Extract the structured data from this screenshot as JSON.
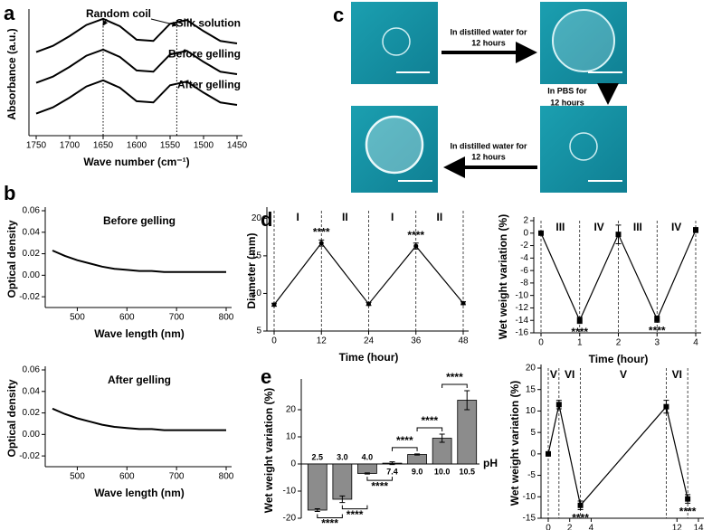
{
  "chart_data": [
    {
      "panel": "a",
      "type": "line",
      "x_label": "Wave number (cm⁻¹)",
      "y_label": "Absorbance (a.u.)",
      "xlim": [
        1750,
        1450
      ],
      "xticks": [
        1750,
        1700,
        1650,
        1600,
        1550,
        1500,
        1450
      ],
      "ylim": [
        0,
        10
      ],
      "x": [
        1750,
        1725,
        1700,
        1675,
        1650,
        1625,
        1600,
        1575,
        1550,
        1525,
        1500,
        1475,
        1450
      ],
      "series": [
        {
          "name": "Silk solution",
          "color": "#000000",
          "values": [
            6.8,
            7.3,
            8.1,
            9.0,
            9.5,
            8.9,
            7.8,
            7.7,
            9.1,
            9.4,
            8.5,
            7.7,
            7.5
          ]
        },
        {
          "name": "Before gelling",
          "color": "#000000",
          "values": [
            4.3,
            4.8,
            5.6,
            6.5,
            7.0,
            6.4,
            5.3,
            5.2,
            6.6,
            6.9,
            6.0,
            5.2,
            5.0
          ]
        },
        {
          "name": "After gelling",
          "color": "#000000",
          "values": [
            1.8,
            2.3,
            3.1,
            4.0,
            4.5,
            3.9,
            2.8,
            2.7,
            4.1,
            4.4,
            3.5,
            2.7,
            2.5
          ]
        }
      ],
      "reference_lines": [
        1650,
        1540
      ],
      "annotation": "Random coil"
    },
    {
      "panel": "b",
      "type": "line",
      "title": "Before gelling",
      "x_label": "Wave length (nm)",
      "y_label": "Optical density",
      "xlim": [
        450,
        800
      ],
      "xticks": [
        500,
        600,
        700,
        800
      ],
      "ylim": [
        -0.03,
        0.06
      ],
      "yticks": [
        {
          "value": -0.02,
          "label": "-0.02"
        },
        {
          "value": 0,
          "label": "0.00"
        },
        {
          "value": 0.02,
          "label": "0.02"
        },
        {
          "value": 0.04,
          "label": "0.04"
        },
        {
          "value": 0.06,
          "label": "0.06"
        }
      ],
      "x": [
        450,
        475,
        500,
        525,
        550,
        575,
        600,
        625,
        650,
        675,
        700,
        725,
        750,
        775,
        800
      ],
      "series": [
        {
          "color": "#000000",
          "values": [
            0.023,
            0.018,
            0.014,
            0.011,
            0.008,
            0.006,
            0.005,
            0.004,
            0.004,
            0.003,
            0.003,
            0.003,
            0.003,
            0.003,
            0.003
          ]
        }
      ]
    },
    {
      "type": "line",
      "title": "After gelling",
      "x_label": "Wave length (nm)",
      "y_label": "Optical density",
      "xlim": [
        450,
        800
      ],
      "xticks": [
        500,
        600,
        700,
        800
      ],
      "ylim": [
        -0.03,
        0.06
      ],
      "yticks": [
        {
          "value": -0.02,
          "label": "-0.02"
        },
        {
          "value": 0,
          "label": "0.00"
        },
        {
          "value": 0.02,
          "label": "0.02"
        },
        {
          "value": 0.04,
          "label": "0.04"
        },
        {
          "value": 0.06,
          "label": "0.06"
        }
      ],
      "x": [
        450,
        475,
        500,
        525,
        550,
        575,
        600,
        625,
        650,
        675,
        700,
        725,
        750,
        775,
        800
      ],
      "series": [
        {
          "color": "#000000",
          "values": [
            0.024,
            0.019,
            0.015,
            0.012,
            0.009,
            0.007,
            0.006,
            0.005,
            0.005,
            0.004,
            0.004,
            0.004,
            0.004,
            0.004,
            0.004
          ]
        }
      ]
    },
    {
      "panel": "d",
      "type": "line",
      "x_label": "Time (hour)",
      "y_label": "Diameter (mm)",
      "marker": "circle",
      "xlim": [
        0,
        48
      ],
      "xticks": [
        0,
        12,
        24,
        36,
        48
      ],
      "ylim": [
        5,
        21
      ],
      "yticks": [
        5,
        10,
        15,
        20
      ],
      "x": [
        0,
        12,
        24,
        36,
        48
      ],
      "series": [
        {
          "color": "#000000",
          "values": [
            8.5,
            16.7,
            8.6,
            16.3,
            8.7
          ],
          "errors": [
            0.2,
            0.4,
            0.2,
            0.4,
            0.2
          ]
        }
      ],
      "boundaries": [
        0,
        12,
        24,
        36,
        48
      ],
      "regions": [
        "I",
        "II",
        "I",
        "II"
      ],
      "annotations": [
        {
          "x": 12,
          "text": "****"
        },
        {
          "x": 36,
          "text": "****"
        }
      ]
    },
    {
      "type": "line",
      "x_label": "Time (hour)",
      "y_label": "Wet weight variation (%)",
      "marker": "square",
      "xlim": [
        0,
        4
      ],
      "xticks": [
        0,
        1,
        2,
        3,
        4
      ],
      "ylim": [
        -16,
        2
      ],
      "yticks": [
        -16,
        -14,
        -12,
        -10,
        -8,
        -6,
        -4,
        -2,
        0,
        2
      ],
      "x": [
        0,
        1,
        2,
        3,
        4
      ],
      "series": [
        {
          "color": "#000000",
          "values": [
            0,
            -14,
            -0.2,
            -13.8,
            0.5
          ],
          "errors": [
            0.2,
            0.5,
            1.5,
            0.5,
            0.4
          ]
        }
      ],
      "boundaries": [
        0,
        1,
        2,
        3,
        4
      ],
      "regions": [
        "III",
        "IV",
        "III",
        "IV"
      ],
      "annotations": [
        {
          "x": 1,
          "text": "****"
        },
        {
          "x": 3,
          "text": "****"
        }
      ]
    },
    {
      "panel": "e",
      "type": "bar",
      "x_label": "pH",
      "y_label": "Wet weight variation (%)",
      "color": "#8c8c8c",
      "categories": [
        "2.5",
        "3.0",
        "4.0",
        "7.4",
        "9.0",
        "10.0",
        "10.5"
      ],
      "values": [
        -17,
        -13,
        -3.5,
        0.3,
        3.5,
        9.5,
        23.5
      ],
      "errors": [
        0.5,
        1.2,
        0.2,
        0.5,
        0.2,
        1.5,
        3.5
      ],
      "ylim": [
        -20,
        30
      ],
      "yticks": [
        -20,
        -10,
        0,
        10,
        20
      ],
      "significance": [
        "****",
        "****",
        "****",
        "****",
        "****",
        "****"
      ]
    },
    {
      "type": "line",
      "x_label": "Time (hour)",
      "y_label": "Wet weight variation (%)",
      "marker": "square",
      "xlim": [
        0,
        14
      ],
      "xticks": [
        0,
        2,
        4,
        12,
        14
      ],
      "ylim": [
        -15,
        20
      ],
      "yticks": [
        -15,
        -10,
        -5,
        0,
        5,
        10,
        15,
        20
      ],
      "x": [
        0,
        1,
        3,
        11,
        13
      ],
      "series": [
        {
          "color": "#000000",
          "values": [
            0,
            11.5,
            -12,
            11,
            -10.5
          ],
          "errors": [
            0.3,
            1,
            1,
            1.5,
            1
          ]
        }
      ],
      "boundaries": [
        0,
        1,
        3,
        11,
        13
      ],
      "regions": [
        "V",
        "VI",
        "V",
        "VI"
      ],
      "annotations": [
        {
          "x": 3,
          "text": "****"
        },
        {
          "x": 13,
          "text": "****"
        }
      ]
    }
  ],
  "panel_c": {
    "panel": "c",
    "steps": [
      [
        "In distilled water for",
        "12 hours"
      ],
      [
        "In PBS for",
        "12 hours"
      ],
      [
        "In distilled water for",
        "12 hours"
      ]
    ]
  }
}
